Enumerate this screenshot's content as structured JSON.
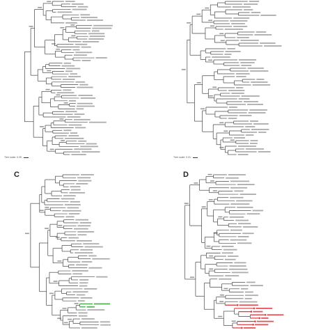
{
  "panels": {
    "a": {
      "letter": "",
      "scale_label": "Tree scale: 0.05",
      "branch_color": "#444444",
      "highlight": null
    },
    "b": {
      "letter": "",
      "scale_label": "Tree scale: 0.01",
      "branch_color": "#444444",
      "highlight": null
    },
    "c": {
      "letter": "C",
      "scale_label": "",
      "branch_color": "#444444",
      "highlight": "#3aa53a"
    },
    "d": {
      "letter": "D",
      "scale_label": "",
      "branch_color": "#444444",
      "highlight": "#e0343b"
    }
  },
  "colors": {
    "label_text": "#666666",
    "bootstrap_text": "#555555"
  }
}
